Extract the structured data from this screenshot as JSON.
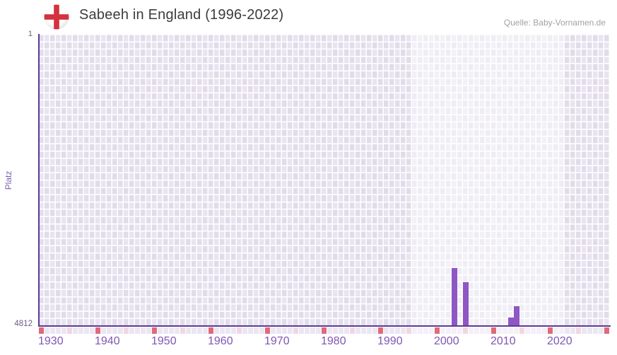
{
  "header": {
    "title": "Sabeeh in England (1996-2022)",
    "source": "Quelle: Baby-Vornamen.de",
    "flag_icon": "england-flag"
  },
  "chart_data": {
    "type": "bar",
    "title": "Sabeeh in England (1996-2022)",
    "xlabel": "",
    "ylabel": "Platz",
    "y_axis": {
      "min": 1,
      "max": 4812,
      "inverted": true,
      "top_label": "1",
      "bottom_label": "4812"
    },
    "x_axis": {
      "min": 1930,
      "max": 2031,
      "tick_years": [
        1930,
        1940,
        1950,
        1960,
        1970,
        1980,
        1990,
        2000,
        2010,
        2020
      ]
    },
    "highlight_range": {
      "from": 1996,
      "to": 2022
    },
    "points": [
      {
        "year": 2003,
        "platz": 3870
      },
      {
        "year": 2005,
        "platz": 4100
      },
      {
        "year": 2013,
        "platz": 4680
      },
      {
        "year": 2014,
        "platz": 4500
      }
    ],
    "grid": true,
    "legend_position": "none",
    "tick_strip": {
      "decade_interval": 10,
      "half_decade_interval": 5
    }
  },
  "colors": {
    "bar": "#8e57c4",
    "axis_line": "#5a3a9a",
    "x_tick_label": "#7e57b2",
    "y_tick_label": "#6a5d84",
    "y_axis_title": "#7d5fae",
    "title_text": "#3c3c3c",
    "source_text": "#a2a2a2",
    "strip_decade": "#e0697a",
    "strip_half_decade": "#f2d7e0",
    "strip_base_out": "#ebe6f1",
    "strip_base_in": "#f4eff8",
    "flag_cross_red": "#d3323e"
  }
}
